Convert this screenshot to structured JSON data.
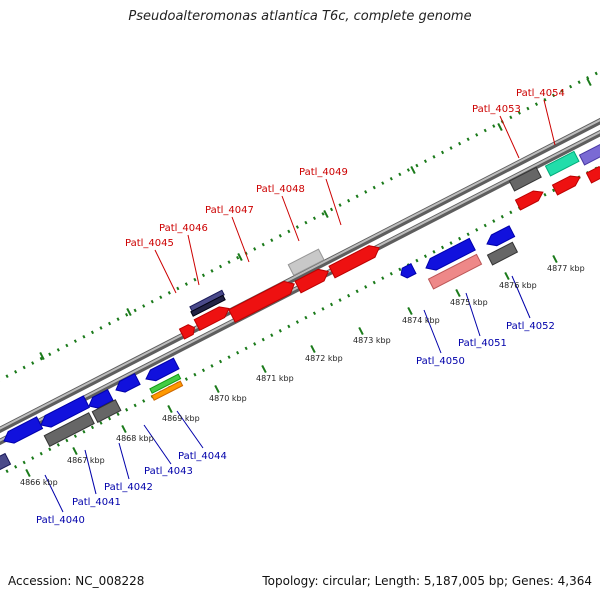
{
  "title": "Pseudoalteromonas atlantica T6c, complete genome",
  "footer": {
    "accession": "Accession: NC_008228",
    "summary": "Topology: circular; Length: 5,187,005 bp; Genes: 4,364"
  },
  "colors": {
    "forward_label": "#cc0000",
    "reverse_label": "#0000aa",
    "backbone": "#8a8a8a",
    "tick": "#1a7a1a",
    "red": "#ee1111",
    "blue": "#1111dd",
    "gray": "#666666",
    "light_gray": "#c8c8c8",
    "navy": "#4a4a8a",
    "teal": "#22ddaa",
    "purple": "#7a6ad4",
    "pink": "#ee8888",
    "green": "#44cc44",
    "orange": "#ff9900"
  },
  "kbp_labels": [
    "4866 kbp",
    "4867 kbp",
    "4868 kbp",
    "4869 kbp",
    "4870 kbp",
    "4871 kbp",
    "4872 kbp",
    "4873 kbp",
    "4874 kbp",
    "4875 kbp",
    "4876 kbp",
    "4877 kbp"
  ],
  "forward_genes": [
    "Patl_4045",
    "Patl_4046",
    "Patl_4047",
    "Patl_4048",
    "Patl_4049",
    "Patl_4053",
    "Patl_4054"
  ],
  "reverse_genes": [
    "Patl_4040",
    "Patl_4041",
    "Patl_4042",
    "Patl_4043",
    "Patl_4044",
    "Patl_4050",
    "Patl_4051",
    "Patl_4052"
  ]
}
